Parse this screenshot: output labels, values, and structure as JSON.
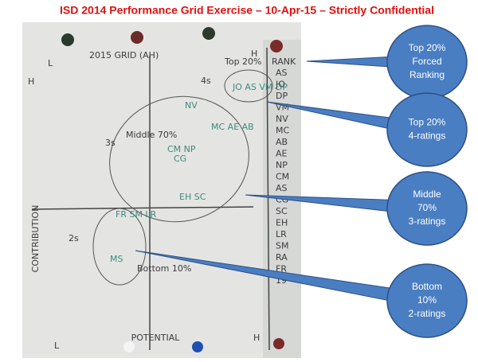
{
  "header": {
    "title": "ISD 2014 Performance Grid Exercise – 10-Apr-15 – Strictly Confidential"
  },
  "board": {
    "heading": "2015 GRID (AH)",
    "rank_heading": "RANK",
    "y_axis": "CONTRIBUTION",
    "x_axis": "POTENTIAL",
    "top_note": "Top 20%",
    "middle_note": "Middle 70%",
    "bottom_note": "Bottom 10%",
    "box_top": "4s",
    "box_mid": "3s",
    "box_bottom": "2s",
    "corner_tl": "H",
    "corner_l": "L",
    "corner_bl": "L",
    "corner_br": "H",
    "corner_tr": "H",
    "top_names": "JO AS VM DP",
    "mid_names_1": "NV",
    "mid_names_2": "MC AE AB",
    "mid_names_3": "CM NP",
    "mid_names_4": "CG",
    "mid_names_5": "EH SC",
    "low_names": "FR SM LR",
    "bottom_names": "MS",
    "rank_list": [
      "AS",
      "JO",
      "DP",
      "VM",
      "NV",
      "MC",
      "AB",
      "AE",
      "NP",
      "CM",
      "AS",
      "CG",
      "SC",
      "EH",
      "LR",
      "SM",
      "RA",
      "FR",
      "19"
    ]
  },
  "callouts": [
    {
      "lines": [
        "Top 20%",
        "Forced",
        "Ranking"
      ]
    },
    {
      "lines": [
        "Top 20%",
        "4-ratings"
      ]
    },
    {
      "lines": [
        "Middle",
        "70%",
        "3-ratings"
      ]
    },
    {
      "lines": [
        "Bottom",
        "10%",
        "2-ratings"
      ]
    }
  ]
}
